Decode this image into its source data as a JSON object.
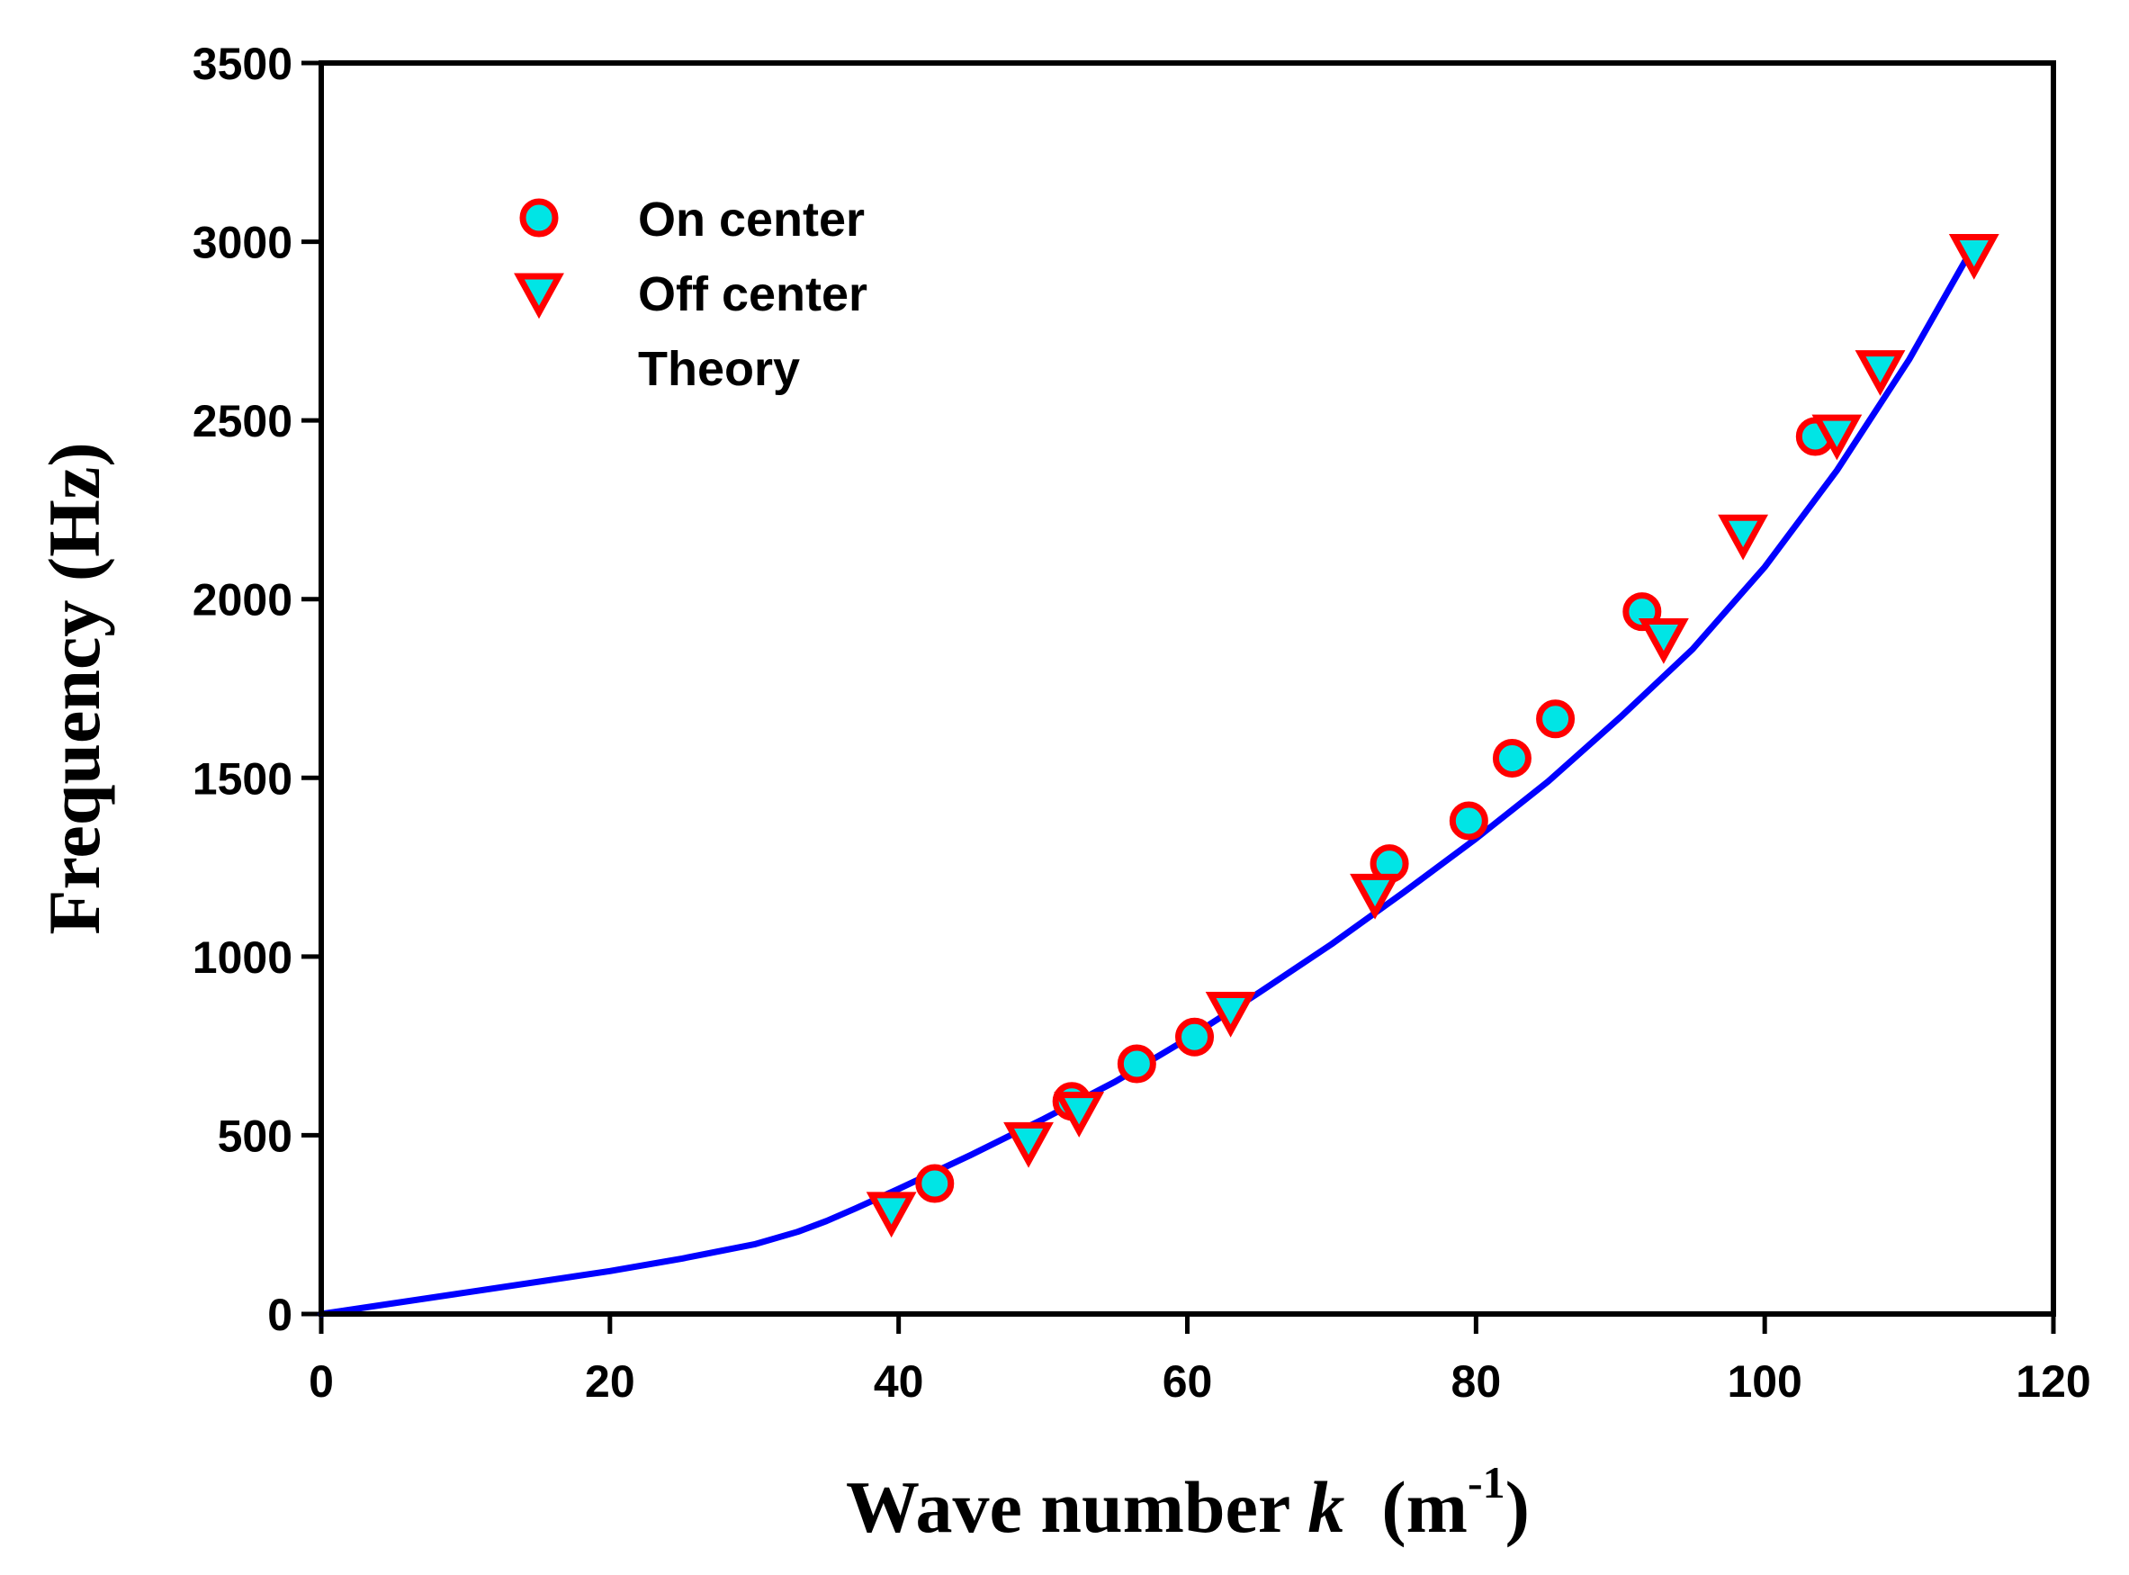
{
  "chart_data": {
    "type": "scatter",
    "xlabel": {
      "prefix": "Wave number ",
      "var": "k",
      "unit_open": "  (m",
      "unit_sup": "-1",
      "unit_close": ")"
    },
    "ylabel": "Frequency (Hz)",
    "xlim": [
      0,
      120
    ],
    "ylim": [
      0,
      3500
    ],
    "xticks": [
      0,
      20,
      40,
      60,
      80,
      100,
      120
    ],
    "yticks": [
      0,
      500,
      1000,
      1500,
      2000,
      2500,
      3000,
      3500
    ],
    "legend_position": "top-left",
    "colors": {
      "marker_edge": "#ff0000",
      "marker_fill": "#00e5e5",
      "theory": "#0000ff",
      "axis": "#000000"
    },
    "series": [
      {
        "name": "On center",
        "marker": "circle",
        "x": [
          42.5,
          52,
          56.5,
          60.5,
          74,
          79.5,
          82.5,
          85.5,
          91.5,
          103.5
        ],
        "y": [
          365,
          595,
          700,
          775,
          1260,
          1380,
          1555,
          1665,
          1965,
          2455
        ]
      },
      {
        "name": "Off center",
        "marker": "triangle-down",
        "x": [
          39.5,
          49,
          52.5,
          63,
          73,
          93,
          98.5,
          105,
          108,
          114.5
        ],
        "y": [
          300,
          495,
          580,
          860,
          1190,
          1905,
          2195,
          2475,
          2655,
          2980
        ]
      },
      {
        "name": "Theory",
        "marker": "line",
        "x": [
          0,
          10,
          20,
          25,
          30,
          33,
          35,
          37,
          40,
          45,
          50,
          55,
          60,
          65,
          70,
          75,
          80,
          85,
          90,
          95,
          100,
          105,
          110,
          114.5
        ],
        "y": [
          0,
          60,
          120,
          155,
          195,
          230,
          260,
          295,
          350,
          445,
          545,
          650,
          770,
          900,
          1035,
          1180,
          1330,
          1490,
          1670,
          1860,
          2090,
          2360,
          2670,
          2990
        ]
      }
    ]
  }
}
